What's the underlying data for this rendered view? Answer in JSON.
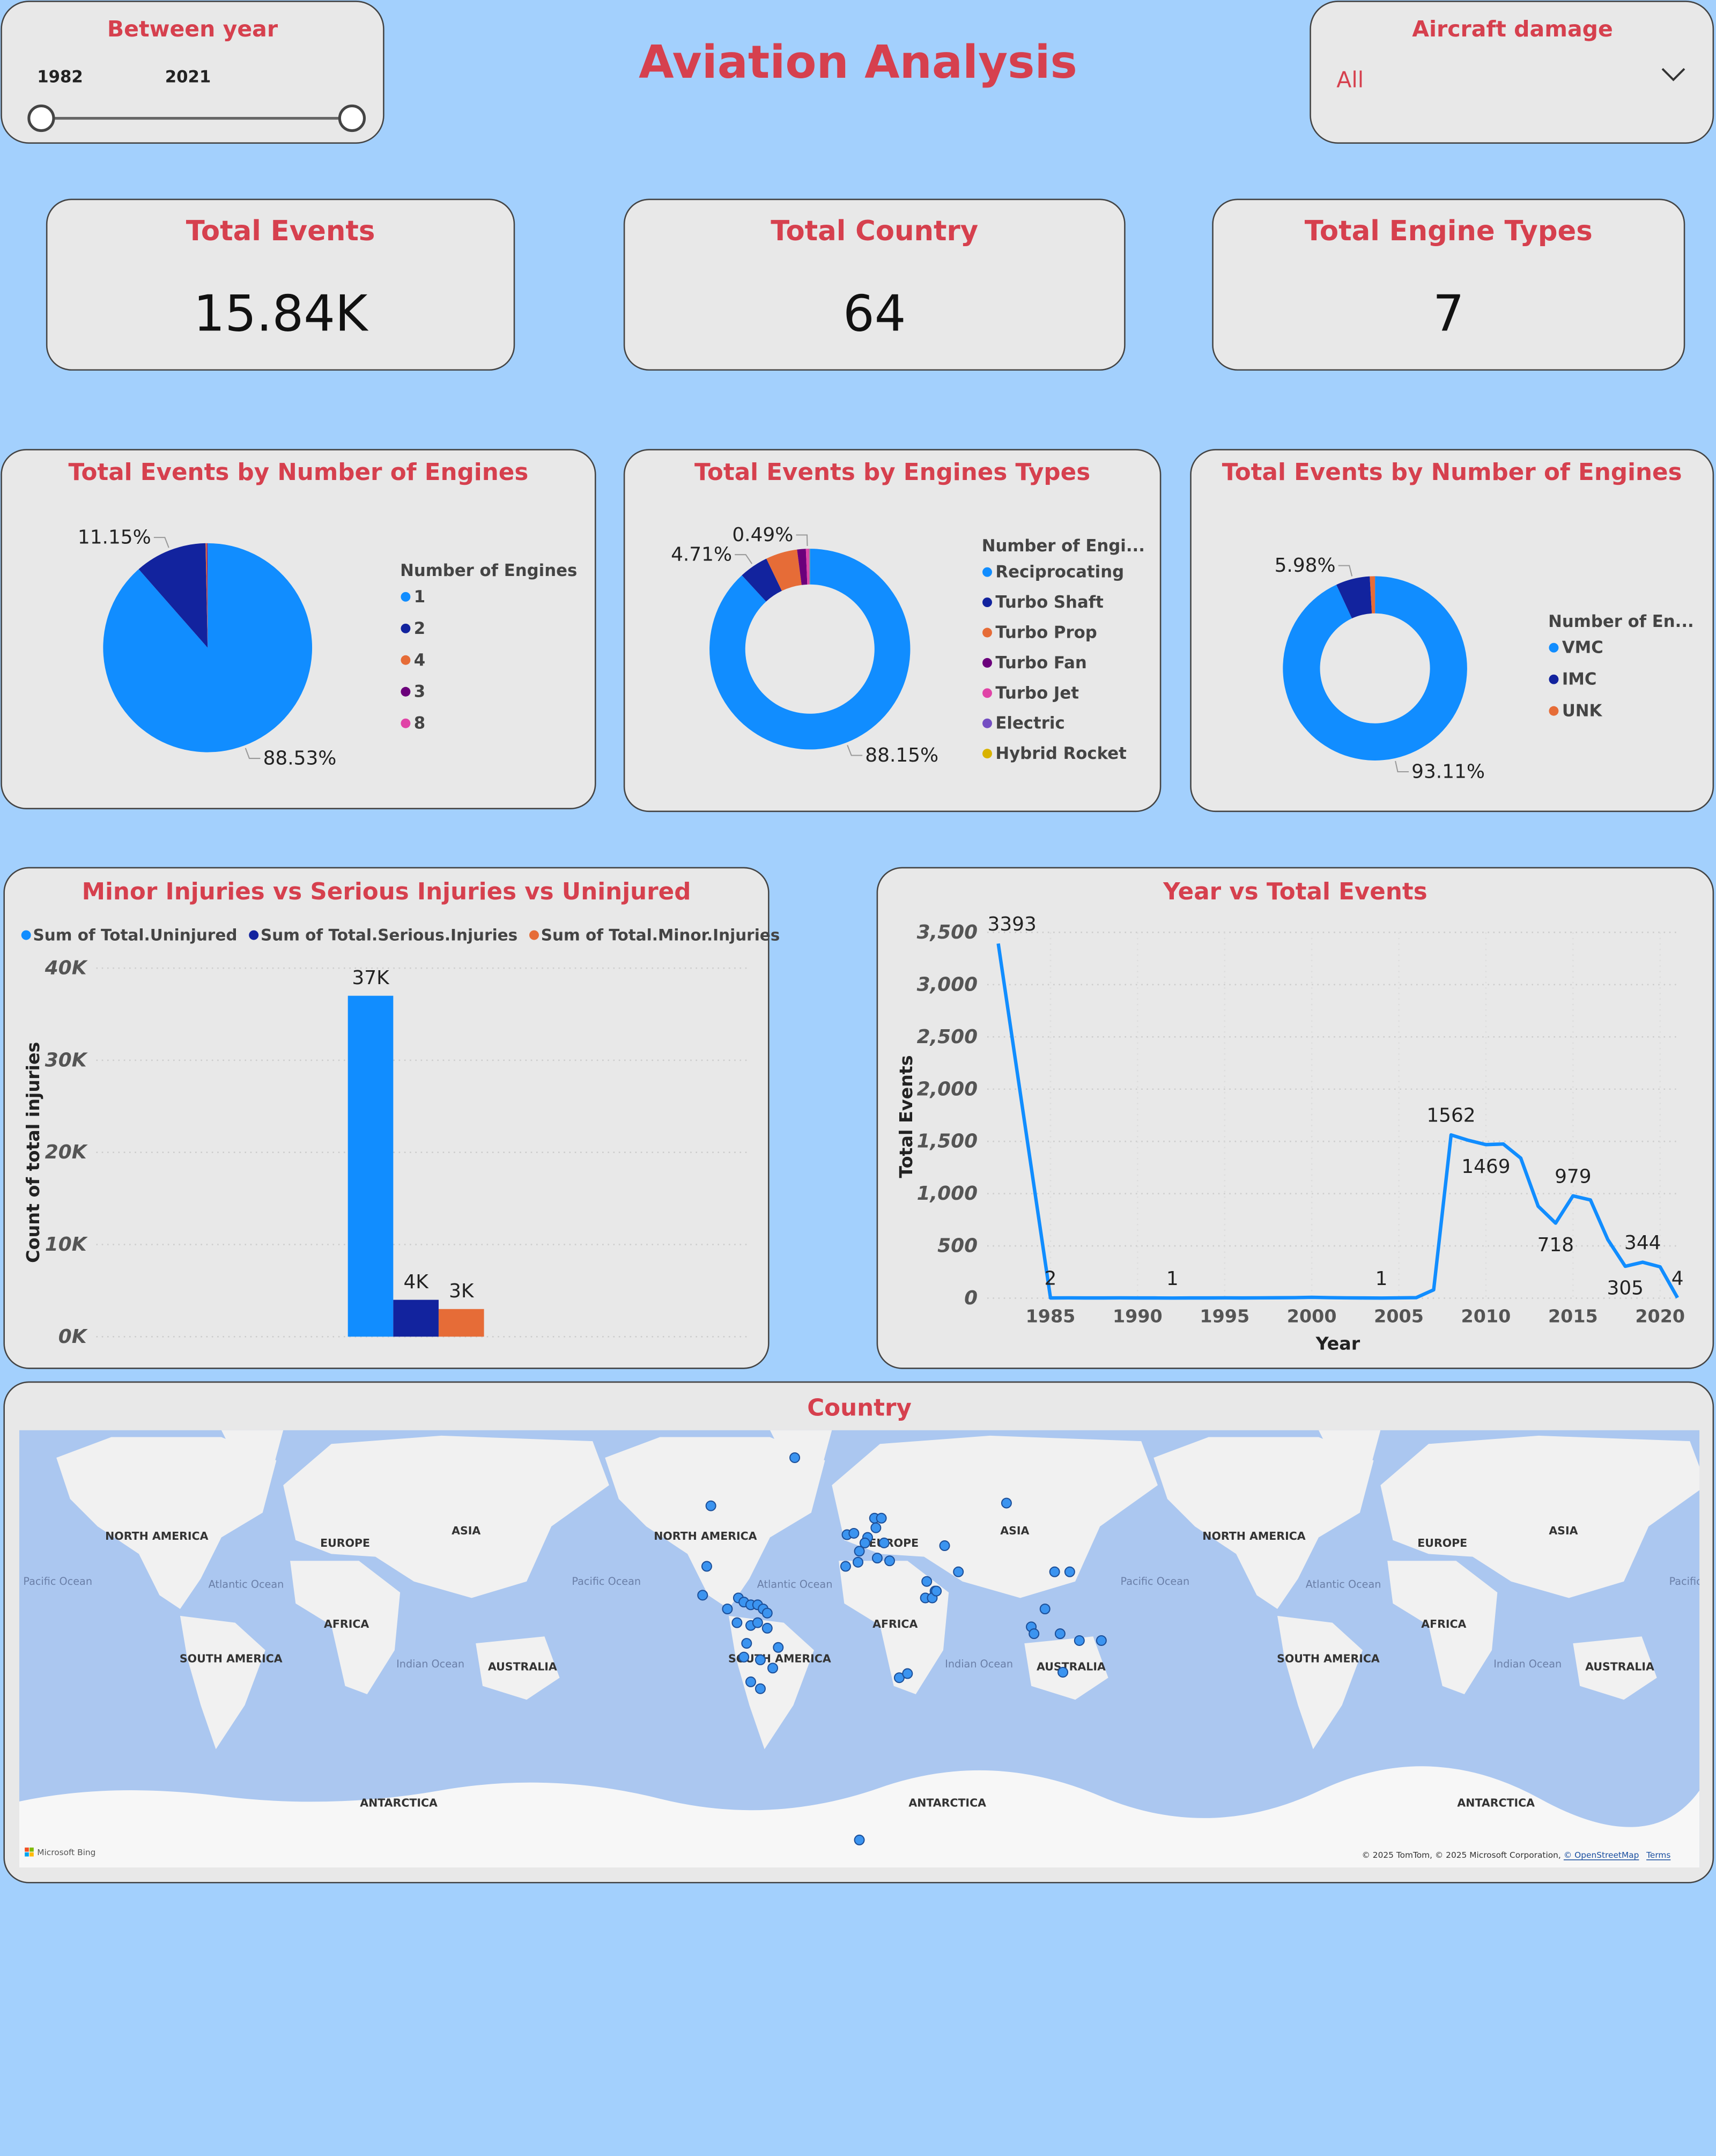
{
  "header": {
    "year_slicer": {
      "title": "Between year",
      "start": "1982",
      "end": "2021"
    },
    "title": "Aviation Analysis",
    "damage_slicer": {
      "title": "Aircraft damage",
      "value": "All"
    }
  },
  "kpis": [
    {
      "label": "Total Events",
      "value": "15.84K"
    },
    {
      "label": "Total Country",
      "value": "64"
    },
    {
      "label": "Total Engine Types",
      "value": "7"
    }
  ],
  "chart_data": [
    {
      "type": "pie",
      "title": "Total Events by Number of Engines",
      "legend_title": "Number of Engines",
      "categories": [
        "1",
        "2",
        "4",
        "3",
        "8"
      ],
      "values": [
        88.53,
        11.15,
        0.2,
        0.1,
        0.02
      ],
      "value_labels": [
        "88.53%",
        "11.15%",
        null,
        null,
        null
      ],
      "colors": [
        "#118dff",
        "#12239e",
        "#e66c37",
        "#6b007b",
        "#e044a7"
      ]
    },
    {
      "type": "donut",
      "title": "Total Events by Engines Types",
      "legend_title": "Number of Engi...",
      "categories": [
        "Reciprocating",
        "Turbo Shaft",
        "Turbo Prop",
        "Turbo Fan",
        "Turbo Jet",
        "Electric",
        "Hybrid Rocket"
      ],
      "values": [
        88.15,
        4.71,
        5.1,
        1.4,
        0.49,
        0.1,
        0.05
      ],
      "value_labels": [
        "88.15%",
        "4.71%",
        null,
        null,
        "0.49%",
        null,
        null
      ],
      "colors": [
        "#118dff",
        "#12239e",
        "#e66c37",
        "#6b007b",
        "#e044a7",
        "#744ec2",
        "#d9b300"
      ]
    },
    {
      "type": "donut",
      "title": "Total Events by Number of Engines",
      "legend_title": "Number of En...",
      "categories": [
        "VMC",
        "IMC",
        "UNK"
      ],
      "values": [
        93.11,
        5.98,
        0.91
      ],
      "value_labels": [
        "93.11%",
        "5.98%",
        null
      ],
      "colors": [
        "#118dff",
        "#12239e",
        "#e66c37"
      ]
    },
    {
      "type": "bar",
      "title": "Minor Injuries vs Serious Injuries vs Uninjured",
      "y_label": "Count of total injuries",
      "categories": [
        null
      ],
      "series": [
        {
          "name": "Sum of Total.Uninjured",
          "color": "#118dff",
          "values": [
            37000
          ],
          "value_labels": [
            "37K"
          ]
        },
        {
          "name": "Sum of Total.Serious.Injuries",
          "color": "#12239e",
          "values": [
            4000
          ],
          "value_labels": [
            "4K"
          ]
        },
        {
          "name": "Sum of Total.Minor.Injuries",
          "color": "#e66c37",
          "values": [
            3000
          ],
          "value_labels": [
            "3K"
          ]
        }
      ],
      "ylim": [
        0,
        40000
      ],
      "yticks": [
        {
          "value": 0,
          "label": "0K"
        },
        {
          "value": 10000,
          "label": "10K"
        },
        {
          "value": 20000,
          "label": "20K"
        },
        {
          "value": 30000,
          "label": "30K"
        },
        {
          "value": 40000,
          "label": "40K"
        }
      ],
      "grid": true
    },
    {
      "type": "line",
      "title": "Year vs Total Events",
      "x_label": "Year",
      "y_label": "Total Events",
      "color": "#118dff",
      "x": [
        1982,
        1985,
        1986,
        1987,
        1988,
        1989,
        1990,
        1991,
        1992,
        1993,
        1994,
        1995,
        1996,
        1997,
        1998,
        1999,
        2000,
        2001,
        2002,
        2003,
        2004,
        2005,
        2006,
        2007,
        2008,
        2009,
        2010,
        2011,
        2012,
        2013,
        2014,
        2015,
        2016,
        2017,
        2018,
        2019,
        2020,
        2021
      ],
      "values": [
        3393,
        2,
        3,
        2,
        2,
        3,
        2,
        2,
        1,
        2,
        2,
        3,
        2,
        3,
        4,
        5,
        8,
        5,
        3,
        2,
        1,
        3,
        5,
        80,
        1562,
        1510,
        1469,
        1475,
        1340,
        880,
        718,
        979,
        940,
        560,
        305,
        344,
        300,
        4
      ],
      "value_labels": [
        "3393",
        "2",
        null,
        null,
        null,
        null,
        null,
        null,
        "1",
        null,
        null,
        null,
        null,
        null,
        null,
        null,
        null,
        null,
        null,
        null,
        "1",
        null,
        null,
        null,
        "1562",
        null,
        "1469",
        null,
        null,
        null,
        "718",
        "979",
        null,
        null,
        "305",
        "344",
        null,
        "4"
      ],
      "xlim": [
        1982,
        2021
      ],
      "xticks": [
        1985,
        1990,
        1995,
        2000,
        2005,
        2010,
        2015,
        2020
      ],
      "ylim": [
        0,
        3500
      ],
      "yticks": [
        0,
        500,
        {
          "value": 1000,
          "label": "1,000"
        },
        {
          "value": 1500,
          "label": "1,500"
        },
        {
          "value": 2000,
          "label": "2,000"
        },
        {
          "value": 2500,
          "label": "2,500"
        },
        {
          "value": 3000,
          "label": "3,000"
        },
        {
          "value": 3500,
          "label": "3,500"
        }
      ],
      "grid": true
    }
  ],
  "map": {
    "title": "Country",
    "labels": [
      "NORTH AMERICA",
      "EUROPE",
      "ASIA",
      "Pacific Ocean",
      "Atlantic Ocean",
      "AFRICA",
      "SOUTH AMERICA",
      "Indian Ocean",
      "AUSTRALIA",
      "ANTARCTICA"
    ],
    "logo": "Microsoft Bing",
    "attribution": "© 2025 TomTom, © 2025 Microsoft Corporation,",
    "osm": "© OpenStreetMap",
    "terms": "Terms"
  }
}
